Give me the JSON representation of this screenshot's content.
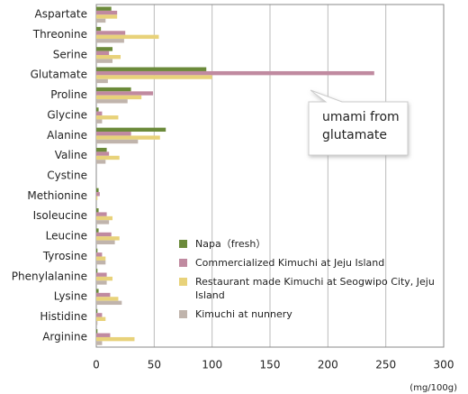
{
  "chart_data": {
    "type": "hbar",
    "categories": [
      "Aspartate",
      "Threonine",
      "Serine",
      "Glutamate",
      "Proline",
      "Glycine",
      "Alanine",
      "Valine",
      "Cystine",
      "Methionine",
      "Isoleucine",
      "Leucine",
      "Tyrosine",
      "Phenylalanine",
      "Lysine",
      "Histidine",
      "Arginine"
    ],
    "series": [
      {
        "name": "Napa（fresh）",
        "color": "#6b8a3a",
        "values": [
          13,
          4,
          14,
          95,
          30,
          2,
          60,
          9,
          0,
          2,
          2,
          2,
          1,
          1,
          2,
          1,
          1
        ]
      },
      {
        "name": "Commercialized Kimuchi at Jeju Island",
        "color": "#c08aa0",
        "values": [
          18,
          25,
          11,
          240,
          49,
          5,
          30,
          11,
          0,
          3,
          9,
          13,
          5,
          9,
          12,
          5,
          12
        ]
      },
      {
        "name": "Restaurant made Kimuchi at Seogwipo City, Jeju Island",
        "color": "#e8d27a",
        "values": [
          18,
          54,
          21,
          100,
          39,
          19,
          55,
          20,
          0,
          1,
          14,
          20,
          8,
          14,
          19,
          8,
          33
        ]
      },
      {
        "name": "Kimuchi at nunnery",
        "color": "#c0b4ac",
        "values": [
          8,
          24,
          14,
          10,
          27,
          5,
          36,
          8,
          0,
          0,
          11,
          16,
          8,
          9,
          22,
          1,
          5
        ]
      }
    ],
    "xlim": [
      0,
      300
    ],
    "xticks": [
      0,
      50,
      100,
      150,
      200,
      250,
      300
    ],
    "grid": true,
    "unit": "(mg/100g)",
    "annotation": "umami from glutamate"
  }
}
